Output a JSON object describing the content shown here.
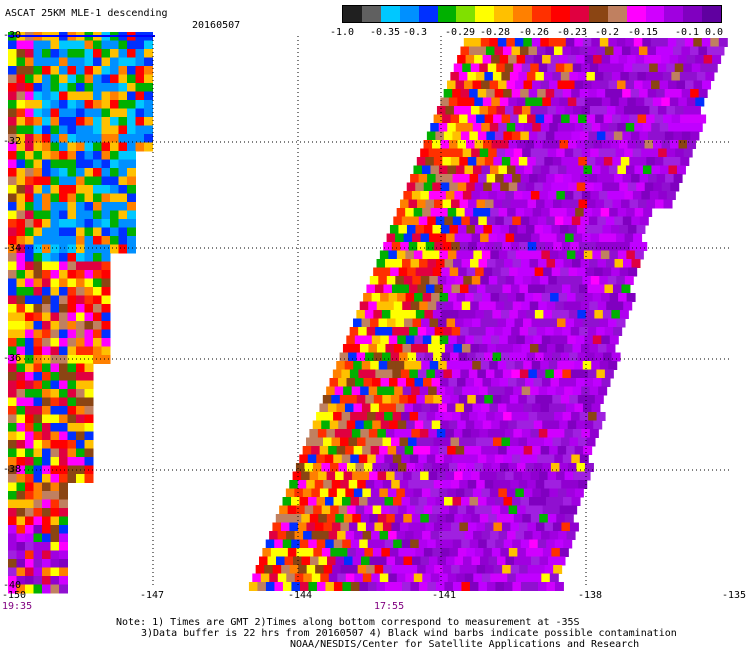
{
  "header": {
    "title": "ASCAT 25KM MLE-1 descending",
    "date": "20160507"
  },
  "colorbar": {
    "labels": [
      "-1.0",
      "-0.35",
      "-0.3",
      "-0.29",
      "-0.28",
      "-0.26",
      "-0.23",
      "-0.2",
      "-0.15",
      "-0.1",
      "0.0"
    ],
    "colors": [
      "#202020",
      "#606060",
      "#00c8ff",
      "#0090ff",
      "#0030ff",
      "#00b000",
      "#80e000",
      "#ffff00",
      "#ffc000",
      "#ff8000",
      "#ff3000",
      "#ff0000",
      "#e00040",
      "#8b4513",
      "#c08060",
      "#ff00ff",
      "#d000ff",
      "#a000e0",
      "#8000c0",
      "#6000a0"
    ]
  },
  "axes": {
    "lat_labels": [
      "-30",
      "-32",
      "-34",
      "-36",
      "-38",
      "-40"
    ],
    "lon_labels": [
      "-150",
      "-147",
      "-144",
      "-141",
      "-138",
      "-135"
    ],
    "time_labels": [
      "19:35",
      "17:55"
    ]
  },
  "notes": {
    "line1": "Note: 1) Times are GMT 2)Times along bottom correspond to measurement at -35S",
    "line2": "3)Data buffer is 22 hrs from 20160507 4) Black wind barbs indicate possible contamination",
    "line3": "NOAA/NESDIS/Center for Satellite Applications and Research"
  }
}
